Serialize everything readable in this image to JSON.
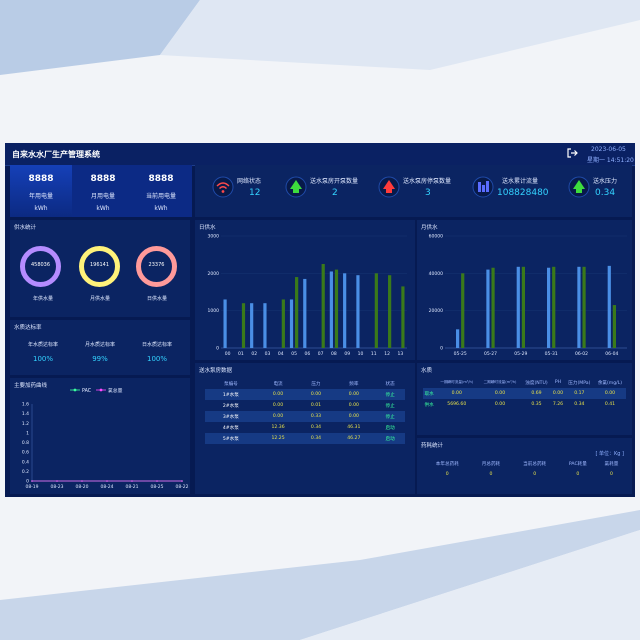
{
  "app": {
    "title": "自来水水厂生产管理系统",
    "date": "2023-06-05",
    "time": "星期一  14:51:20"
  },
  "left_stats": [
    {
      "value": "8888",
      "label": "年用电量",
      "unit": "kWh"
    },
    {
      "value": "8888",
      "label": "月用电量",
      "unit": "kWh"
    },
    {
      "value": "8888",
      "label": "当前用电量",
      "unit": "kWh"
    }
  ],
  "top_stats": [
    {
      "icon": "wifi-icon",
      "label": "网络状态",
      "value": "12",
      "color": "#ff4a4a"
    },
    {
      "icon": "pump-on-icon",
      "label": "送水泵房开泵数量",
      "value": "2",
      "color": "#3ddc3d"
    },
    {
      "icon": "pump-off-icon",
      "label": "送水泵房停泵数量",
      "value": "3",
      "color": "#ff3b3b"
    },
    {
      "icon": "flow-icon",
      "label": "送水累计流量",
      "value": "108828480",
      "color": "#5a6cff"
    },
    {
      "icon": "pressure-icon",
      "label": "送水压力",
      "value": "0.34",
      "color": "#3ddc3d"
    }
  ],
  "supply": {
    "title": "供水统计",
    "rings": [
      {
        "value": "458036",
        "label": "年供水量",
        "color": "#b58cff"
      },
      {
        "value": "196141",
        "label": "月供水量",
        "color": "#fff27a"
      },
      {
        "value": "23376",
        "label": "日供水量",
        "color": "#ff9a9a"
      }
    ]
  },
  "quality_rate": {
    "title": "水质达标率",
    "items": [
      {
        "label": "年水质达标率",
        "value": "100%"
      },
      {
        "label": "月水质达标率",
        "value": "99%"
      },
      {
        "label": "日水质达标率",
        "value": "100%"
      }
    ]
  },
  "dosing": {
    "title": "主要加药曲线",
    "legend": [
      {
        "name": "PAC",
        "color": "#39ff9f"
      },
      {
        "name": "氯总量",
        "color": "#ff4aff"
      }
    ]
  },
  "pump_table": {
    "title": "送水泵房数据",
    "headers": [
      "泵编号",
      "电流",
      "压力",
      "频率",
      "状态"
    ],
    "rows": [
      [
        "1#水泵",
        "0.00",
        "0.00",
        "0.00",
        "停止"
      ],
      [
        "2#水泵",
        "0.00",
        "0.01",
        "0.00",
        "停止"
      ],
      [
        "3#水泵",
        "0.00",
        "0.33",
        "0.00",
        "停止"
      ],
      [
        "4#水泵",
        "12.36",
        "0.34",
        "46.31",
        "启动"
      ],
      [
        "5#水泵",
        "12.25",
        "0.34",
        "46.27",
        "启动"
      ]
    ]
  },
  "water_quality": {
    "title": "水质",
    "headers": [
      "",
      "一期瞬时流量(m³/h)",
      "二期瞬时流量(m³/h)",
      "浊度(NTU)",
      "PH",
      "压力(MPa)",
      "余氯(mg/L)"
    ],
    "rows": [
      [
        "取水",
        "0.00",
        "0.00",
        "0.69",
        "0.00",
        "0.17",
        "0.00"
      ],
      [
        "供水",
        "5696.60",
        "0.00",
        "0.35",
        "7.26",
        "0.34",
        "0.41"
      ]
    ]
  },
  "medicine": {
    "title": "药耗统计",
    "unit": "[ 单位：Kg ]",
    "headers": [
      "本年总药耗",
      "月总药耗",
      "当前总药耗",
      "PAC耗量",
      "氯耗量"
    ],
    "values": [
      "0",
      "0",
      "0",
      "0",
      "0"
    ]
  },
  "chart_data": [
    {
      "type": "bar",
      "title": "日供水",
      "categories": [
        "00",
        "01",
        "02",
        "03",
        "04",
        "05",
        "06",
        "07",
        "08",
        "09",
        "10",
        "11",
        "12",
        "13"
      ],
      "series": [
        {
          "values": [
            1300,
            0,
            1200,
            1200,
            0,
            1300,
            1850,
            0,
            2050,
            2000,
            1950,
            0,
            0,
            0
          ],
          "color": "#4a8fe6"
        },
        {
          "values": [
            0,
            1200,
            0,
            0,
            1300,
            1900,
            0,
            2250,
            2100,
            0,
            0,
            2000,
            1950,
            1650
          ],
          "color": "#3a7a1a"
        }
      ],
      "ylim": [
        0,
        3000
      ],
      "yticks": [
        0,
        1000,
        2000,
        3000
      ]
    },
    {
      "type": "bar",
      "title": "月供水",
      "categories": [
        "05-25",
        "05-27",
        "05-29",
        "05-31",
        "06-02",
        "06-04"
      ],
      "series": [
        {
          "values": [
            10000,
            42000,
            43500,
            43000,
            43500,
            44000
          ],
          "color": "#4a8fe6"
        },
        {
          "values": [
            40000,
            43000,
            43500,
            43500,
            43500,
            23000
          ],
          "color": "#3a7a1a"
        }
      ],
      "ylim": [
        0,
        60000
      ],
      "yticks": [
        0,
        20000,
        40000,
        60000
      ]
    },
    {
      "type": "line",
      "title": "主要加药曲线",
      "x": [
        "08-19",
        "08-23",
        "08-20",
        "08-24",
        "08-21",
        "08-25",
        "08-22"
      ],
      "series": [
        {
          "name": "PAC",
          "values": [
            0,
            0,
            0,
            0,
            0,
            0,
            0
          ]
        },
        {
          "name": "氯总量",
          "values": [
            0,
            0,
            0,
            0,
            0,
            0,
            0
          ]
        }
      ],
      "ylim": [
        0,
        1.6
      ],
      "yticks": [
        0,
        0.2,
        0.4,
        0.6,
        0.8,
        1,
        1.2,
        1.4,
        1.6
      ]
    }
  ]
}
